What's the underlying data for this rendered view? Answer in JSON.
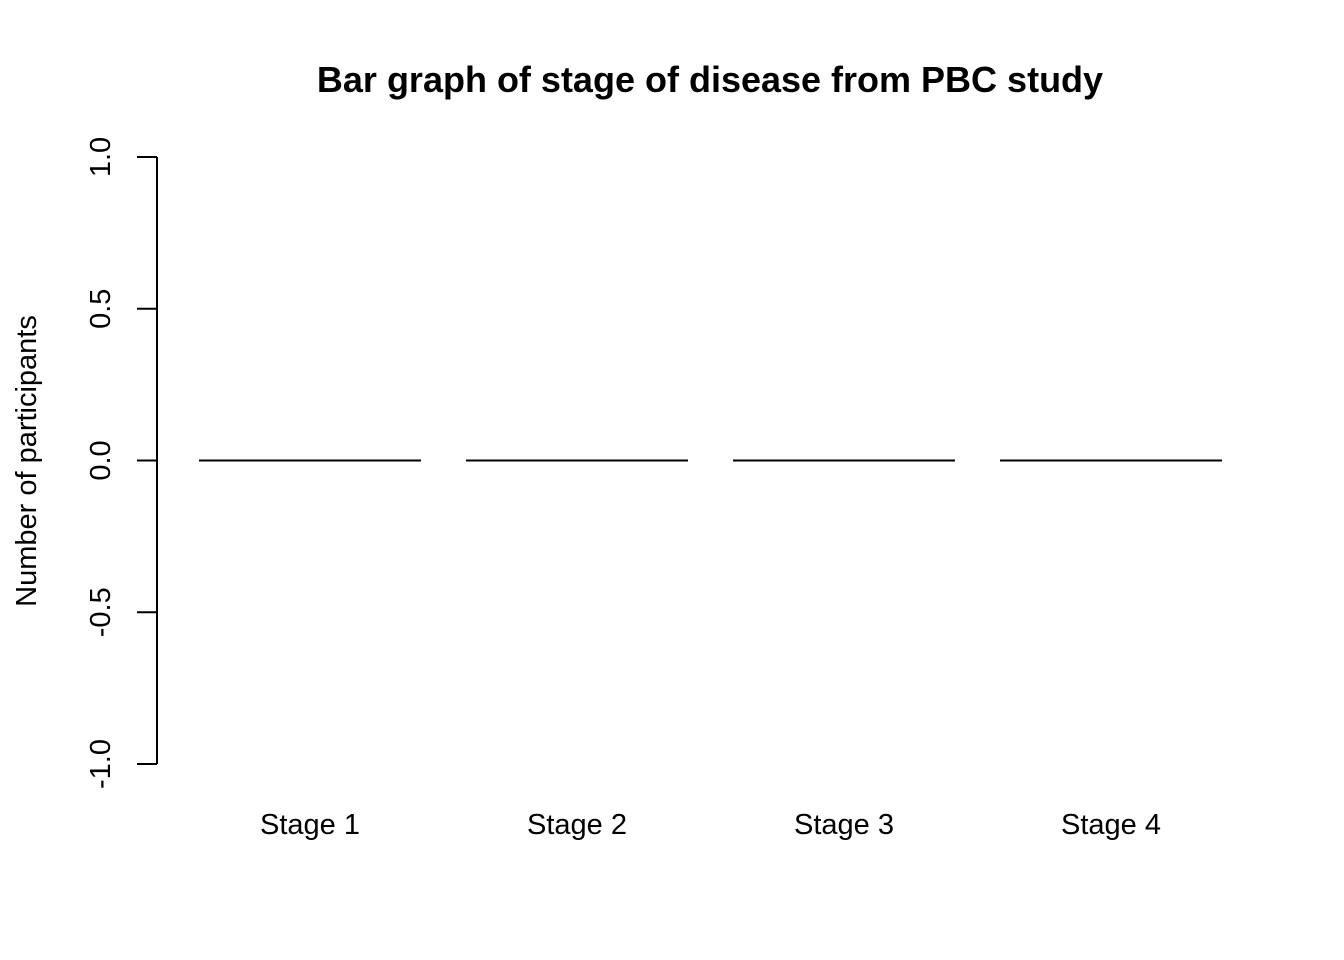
{
  "chart_data": {
    "type": "bar",
    "title": "Bar graph of stage of disease from PBC study",
    "xlabel": "",
    "ylabel": "Number of participants",
    "categories": [
      "Stage 1",
      "Stage 2",
      "Stage 3",
      "Stage 4"
    ],
    "values": [
      0,
      0,
      0,
      0
    ],
    "ylim": [
      -1.0,
      1.0
    ],
    "yticks": [
      "-1.0",
      "-0.5",
      "0.0",
      "0.5",
      "1.0"
    ],
    "grid": false,
    "bar_fill": "none",
    "bar_stroke": "#000000"
  }
}
